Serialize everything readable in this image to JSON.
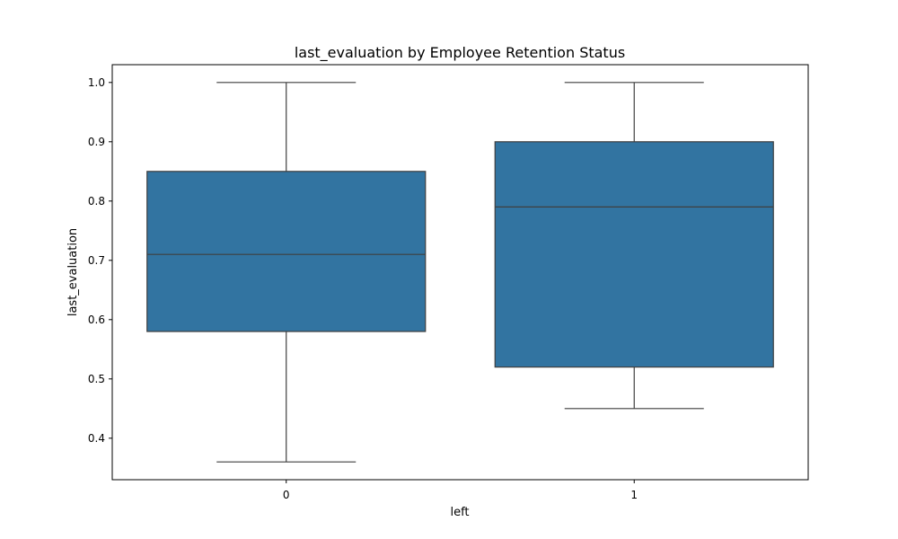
{
  "chart_data": {
    "type": "box",
    "title": "last_evaluation by Employee Retention Status",
    "xlabel": "left",
    "ylabel": "last_evaluation",
    "categories": [
      "0",
      "1"
    ],
    "ylim": [
      0.33,
      1.03
    ],
    "yticks": [
      0.4,
      0.5,
      0.6,
      0.7,
      0.8,
      0.9,
      1.0
    ],
    "ytick_labels": [
      "0.4",
      "0.5",
      "0.6",
      "0.7",
      "0.8",
      "0.9",
      "1.0"
    ],
    "boxes": [
      {
        "category": "0",
        "whisker_low": 0.36,
        "q1": 0.58,
        "median": 0.71,
        "q3": 0.85,
        "whisker_high": 1.0
      },
      {
        "category": "1",
        "whisker_low": 0.45,
        "q1": 0.52,
        "median": 0.79,
        "q3": 0.9,
        "whisker_high": 1.0
      }
    ],
    "grid": false,
    "colors": {
      "box_fill": "#3274a1",
      "line": "#3f3f3f",
      "axis": "#000000"
    }
  }
}
